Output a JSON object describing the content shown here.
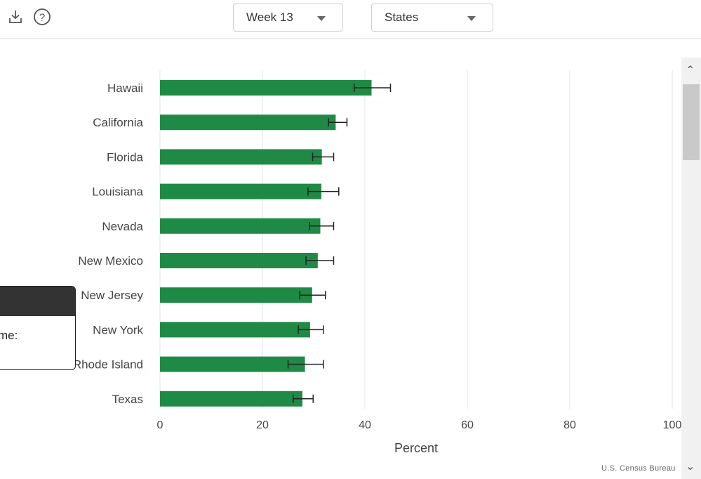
{
  "toolbar": {
    "download_icon": "download-icon",
    "help_icon": "help-icon",
    "week_select": "Week 13",
    "geo_select": "States"
  },
  "tooltip": {
    "text": "me:"
  },
  "source": "U.S. Census Bureau",
  "colors": {
    "bar": "#1f8a45",
    "grid": "#e4e4e4",
    "error": "#222222"
  },
  "chart_data": {
    "type": "bar",
    "orientation": "horizontal",
    "categories": [
      "Hawaii",
      "California",
      "Florida",
      "Louisiana",
      "Nevada",
      "New Mexico",
      "New Jersey",
      "New York",
      "Rhode Island",
      "Texas"
    ],
    "values": [
      41.3,
      34.3,
      31.6,
      31.5,
      31.3,
      30.8,
      29.7,
      29.3,
      28.3,
      27.8
    ],
    "error_low": [
      37.9,
      32.9,
      29.8,
      28.9,
      29.2,
      28.5,
      27.3,
      27.0,
      25.0,
      26.0
    ],
    "error_high": [
      45.0,
      36.5,
      33.9,
      34.9,
      33.9,
      33.9,
      32.3,
      31.9,
      31.9,
      29.9
    ],
    "xlabel": "Percent",
    "ylabel": "",
    "xlim": [
      0,
      100
    ],
    "xticks": [
      0,
      20,
      40,
      60,
      80,
      100
    ],
    "grid": true
  }
}
